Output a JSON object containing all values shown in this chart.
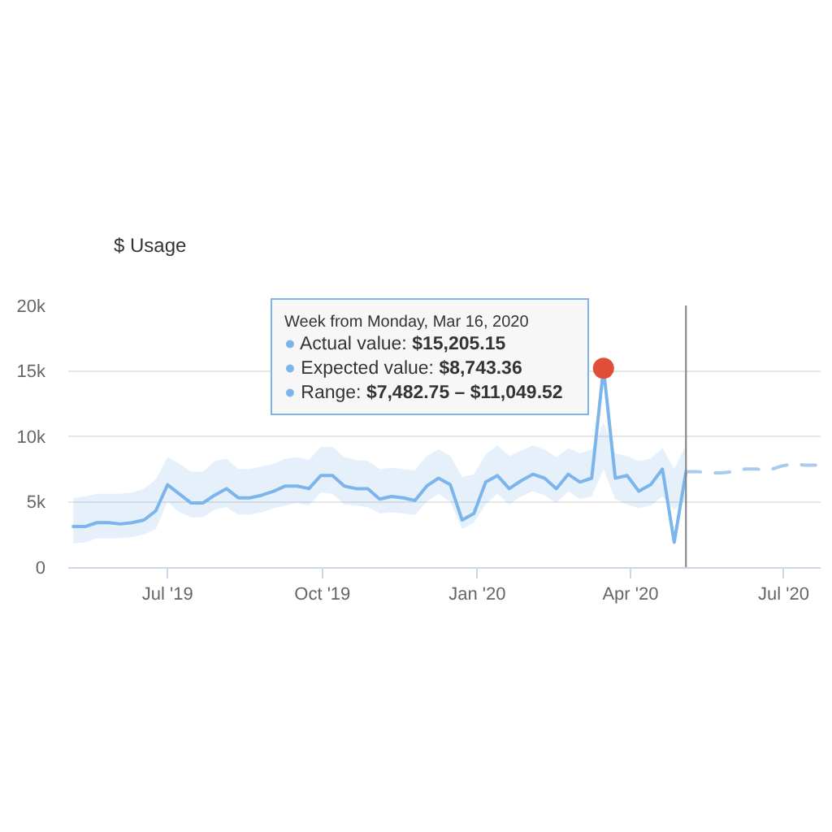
{
  "chart_data": {
    "type": "line",
    "title": "$ Usage",
    "annotations": [
      "Week from Monday, Mar 16, 2020",
      "● Actual value: $15,205.15",
      "● Expected value: $8,743.36",
      "● Range: $7,482.75 – $11,049.52"
    ],
    "xlim": [
      "2019-05-03",
      "2020-07-23"
    ],
    "xticks": [
      {
        "value": "2019-07-01",
        "label": "Jul '19"
      },
      {
        "value": "2019-10-01",
        "label": "Oct '19"
      },
      {
        "value": "2020-01-01",
        "label": "Jan '20"
      },
      {
        "value": "2020-04-01",
        "label": "Apr '20"
      },
      {
        "value": "2020-07-01",
        "label": "Jul '20"
      }
    ],
    "ylim": [
      0,
      20000
    ],
    "yticks": [
      {
        "value": 0,
        "label": "0"
      },
      {
        "value": 5000,
        "label": "5k"
      },
      {
        "value": 10000,
        "label": "10k"
      },
      {
        "value": 15000,
        "label": "15k"
      },
      {
        "value": 20000,
        "label": "20k"
      }
    ],
    "grid": "y",
    "marker": "none",
    "line_style": "solid",
    "ref_lines": [
      {
        "axis": "x",
        "value": "2020-05-04",
        "color": "#808080"
      }
    ],
    "series": [
      {
        "color": "#7cb5ec",
        "x": [
          "2019-05-06",
          "2019-05-13",
          "2019-05-20",
          "2019-05-27",
          "2019-06-03",
          "2019-06-10",
          "2019-06-17",
          "2019-06-24",
          "2019-07-01",
          "2019-07-08",
          "2019-07-15",
          "2019-07-22",
          "2019-07-29",
          "2019-08-05",
          "2019-08-12",
          "2019-08-19",
          "2019-08-26",
          "2019-09-02",
          "2019-09-09",
          "2019-09-16",
          "2019-09-23",
          "2019-09-30",
          "2019-10-07",
          "2019-10-14",
          "2019-10-21",
          "2019-10-28",
          "2019-11-04",
          "2019-11-11",
          "2019-11-18",
          "2019-11-25",
          "2019-12-02",
          "2019-12-09",
          "2019-12-16",
          "2019-12-23",
          "2019-12-30",
          "2020-01-06",
          "2020-01-13",
          "2020-01-20",
          "2020-01-27",
          "2020-02-03",
          "2020-02-10",
          "2020-02-17",
          "2020-02-24",
          "2020-03-02",
          "2020-03-09",
          "2020-03-16",
          "2020-03-23",
          "2020-03-30",
          "2020-04-06",
          "2020-04-13",
          "2020-04-20",
          "2020-04-27",
          "2020-05-04"
        ],
        "values": [
          3100,
          3100,
          3400,
          3400,
          3300,
          3400,
          3600,
          4300,
          6300,
          5600,
          4900,
          4900,
          5500,
          6000,
          5300,
          5300,
          5500,
          5800,
          6200,
          6200,
          6000,
          7000,
          7000,
          6200,
          6000,
          6000,
          5200,
          5400,
          5300,
          5100,
          6200,
          6800,
          6300,
          3600,
          4100,
          6500,
          7000,
          6000,
          6600,
          7100,
          6800,
          6000,
          7100,
          6500,
          6800,
          15205.15,
          6800,
          7000,
          5800,
          6300,
          7500,
          1900,
          7300
        ],
        "lower": [
          1800,
          1900,
          2200,
          2200,
          2200,
          2300,
          2500,
          2900,
          5000,
          4200,
          3800,
          3800,
          4400,
          4600,
          4000,
          4000,
          4200,
          4500,
          4700,
          4900,
          4700,
          5700,
          5600,
          4800,
          4700,
          4600,
          4100,
          4200,
          4100,
          4000,
          5000,
          5600,
          5000,
          2900,
          3400,
          4800,
          5600,
          4800,
          5400,
          5800,
          5500,
          4900,
          5800,
          5200,
          5400,
          7482.75,
          5200,
          4800,
          4500,
          4700,
          5400,
          4400,
          5200
        ],
        "upper": [
          5300,
          5400,
          5600,
          5600,
          5600,
          5700,
          6000,
          6700,
          8400,
          7900,
          7300,
          7300,
          8100,
          8300,
          7500,
          7500,
          7700,
          7900,
          8300,
          8400,
          8200,
          9200,
          9200,
          8400,
          8200,
          8100,
          7500,
          7600,
          7500,
          7400,
          8500,
          9000,
          8500,
          6900,
          7100,
          8600,
          9300,
          8500,
          8900,
          9300,
          9000,
          8400,
          9100,
          8700,
          9000,
          11049.52,
          8700,
          8500,
          8100,
          8300,
          9100,
          7500,
          9300
        ]
      },
      {
        "color": "#a9cbf0",
        "line_style": "dashed",
        "x": [
          "2020-05-04",
          "2020-05-11",
          "2020-05-18",
          "2020-05-25",
          "2020-06-01",
          "2020-06-08",
          "2020-06-15",
          "2020-06-22",
          "2020-06-29",
          "2020-07-06",
          "2020-07-13",
          "2020-07-20"
        ],
        "values": [
          7300,
          7300,
          7200,
          7200,
          7300,
          7500,
          7500,
          7400,
          7700,
          7900,
          7800,
          7800
        ]
      },
      {
        "type": "scatter",
        "color": "#e04e39",
        "marker": "circle",
        "x": [
          "2020-03-16"
        ],
        "values": [
          15205.15
        ]
      }
    ]
  }
}
